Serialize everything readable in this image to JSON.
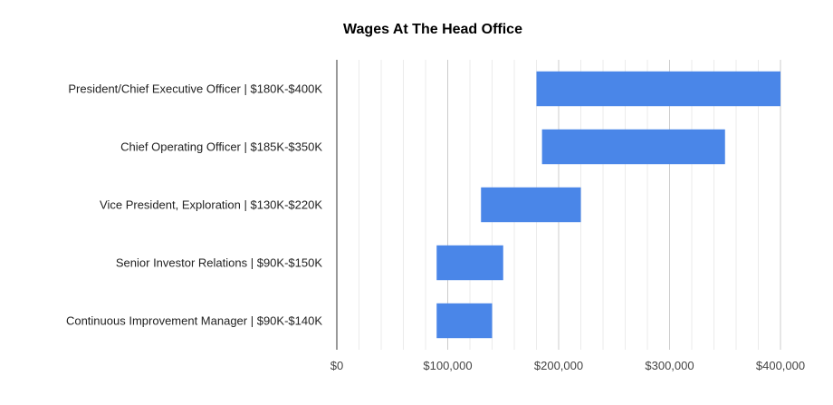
{
  "chart_data": {
    "type": "bar",
    "orientation": "horizontal",
    "style": "floating-range",
    "title": "Wages At The Head Office",
    "xlabel": "",
    "ylabel": "",
    "xlim": [
      0,
      400000
    ],
    "x_ticks": [
      0,
      100000,
      200000,
      300000,
      400000
    ],
    "x_tick_labels": [
      "$0",
      "$100,000",
      "$200,000",
      "$300,000",
      "$400,000"
    ],
    "minor_gridlines_per_major": 5,
    "grid": true,
    "legend": "none",
    "bar_color": "#4a86e8",
    "categories": [
      "President/Chief Executive Officer | $180K-$400K",
      "Chief Operating Officer | $185K-$350K",
      "Vice President, Exploration | $130K-$220K",
      "Senior Investor Relations | $90K-$150K",
      "Continuous Improvement Manager | $90K-$140K"
    ],
    "ranges": [
      [
        180000,
        400000
      ],
      [
        185000,
        350000
      ],
      [
        130000,
        220000
      ],
      [
        90000,
        150000
      ],
      [
        90000,
        140000
      ]
    ]
  }
}
